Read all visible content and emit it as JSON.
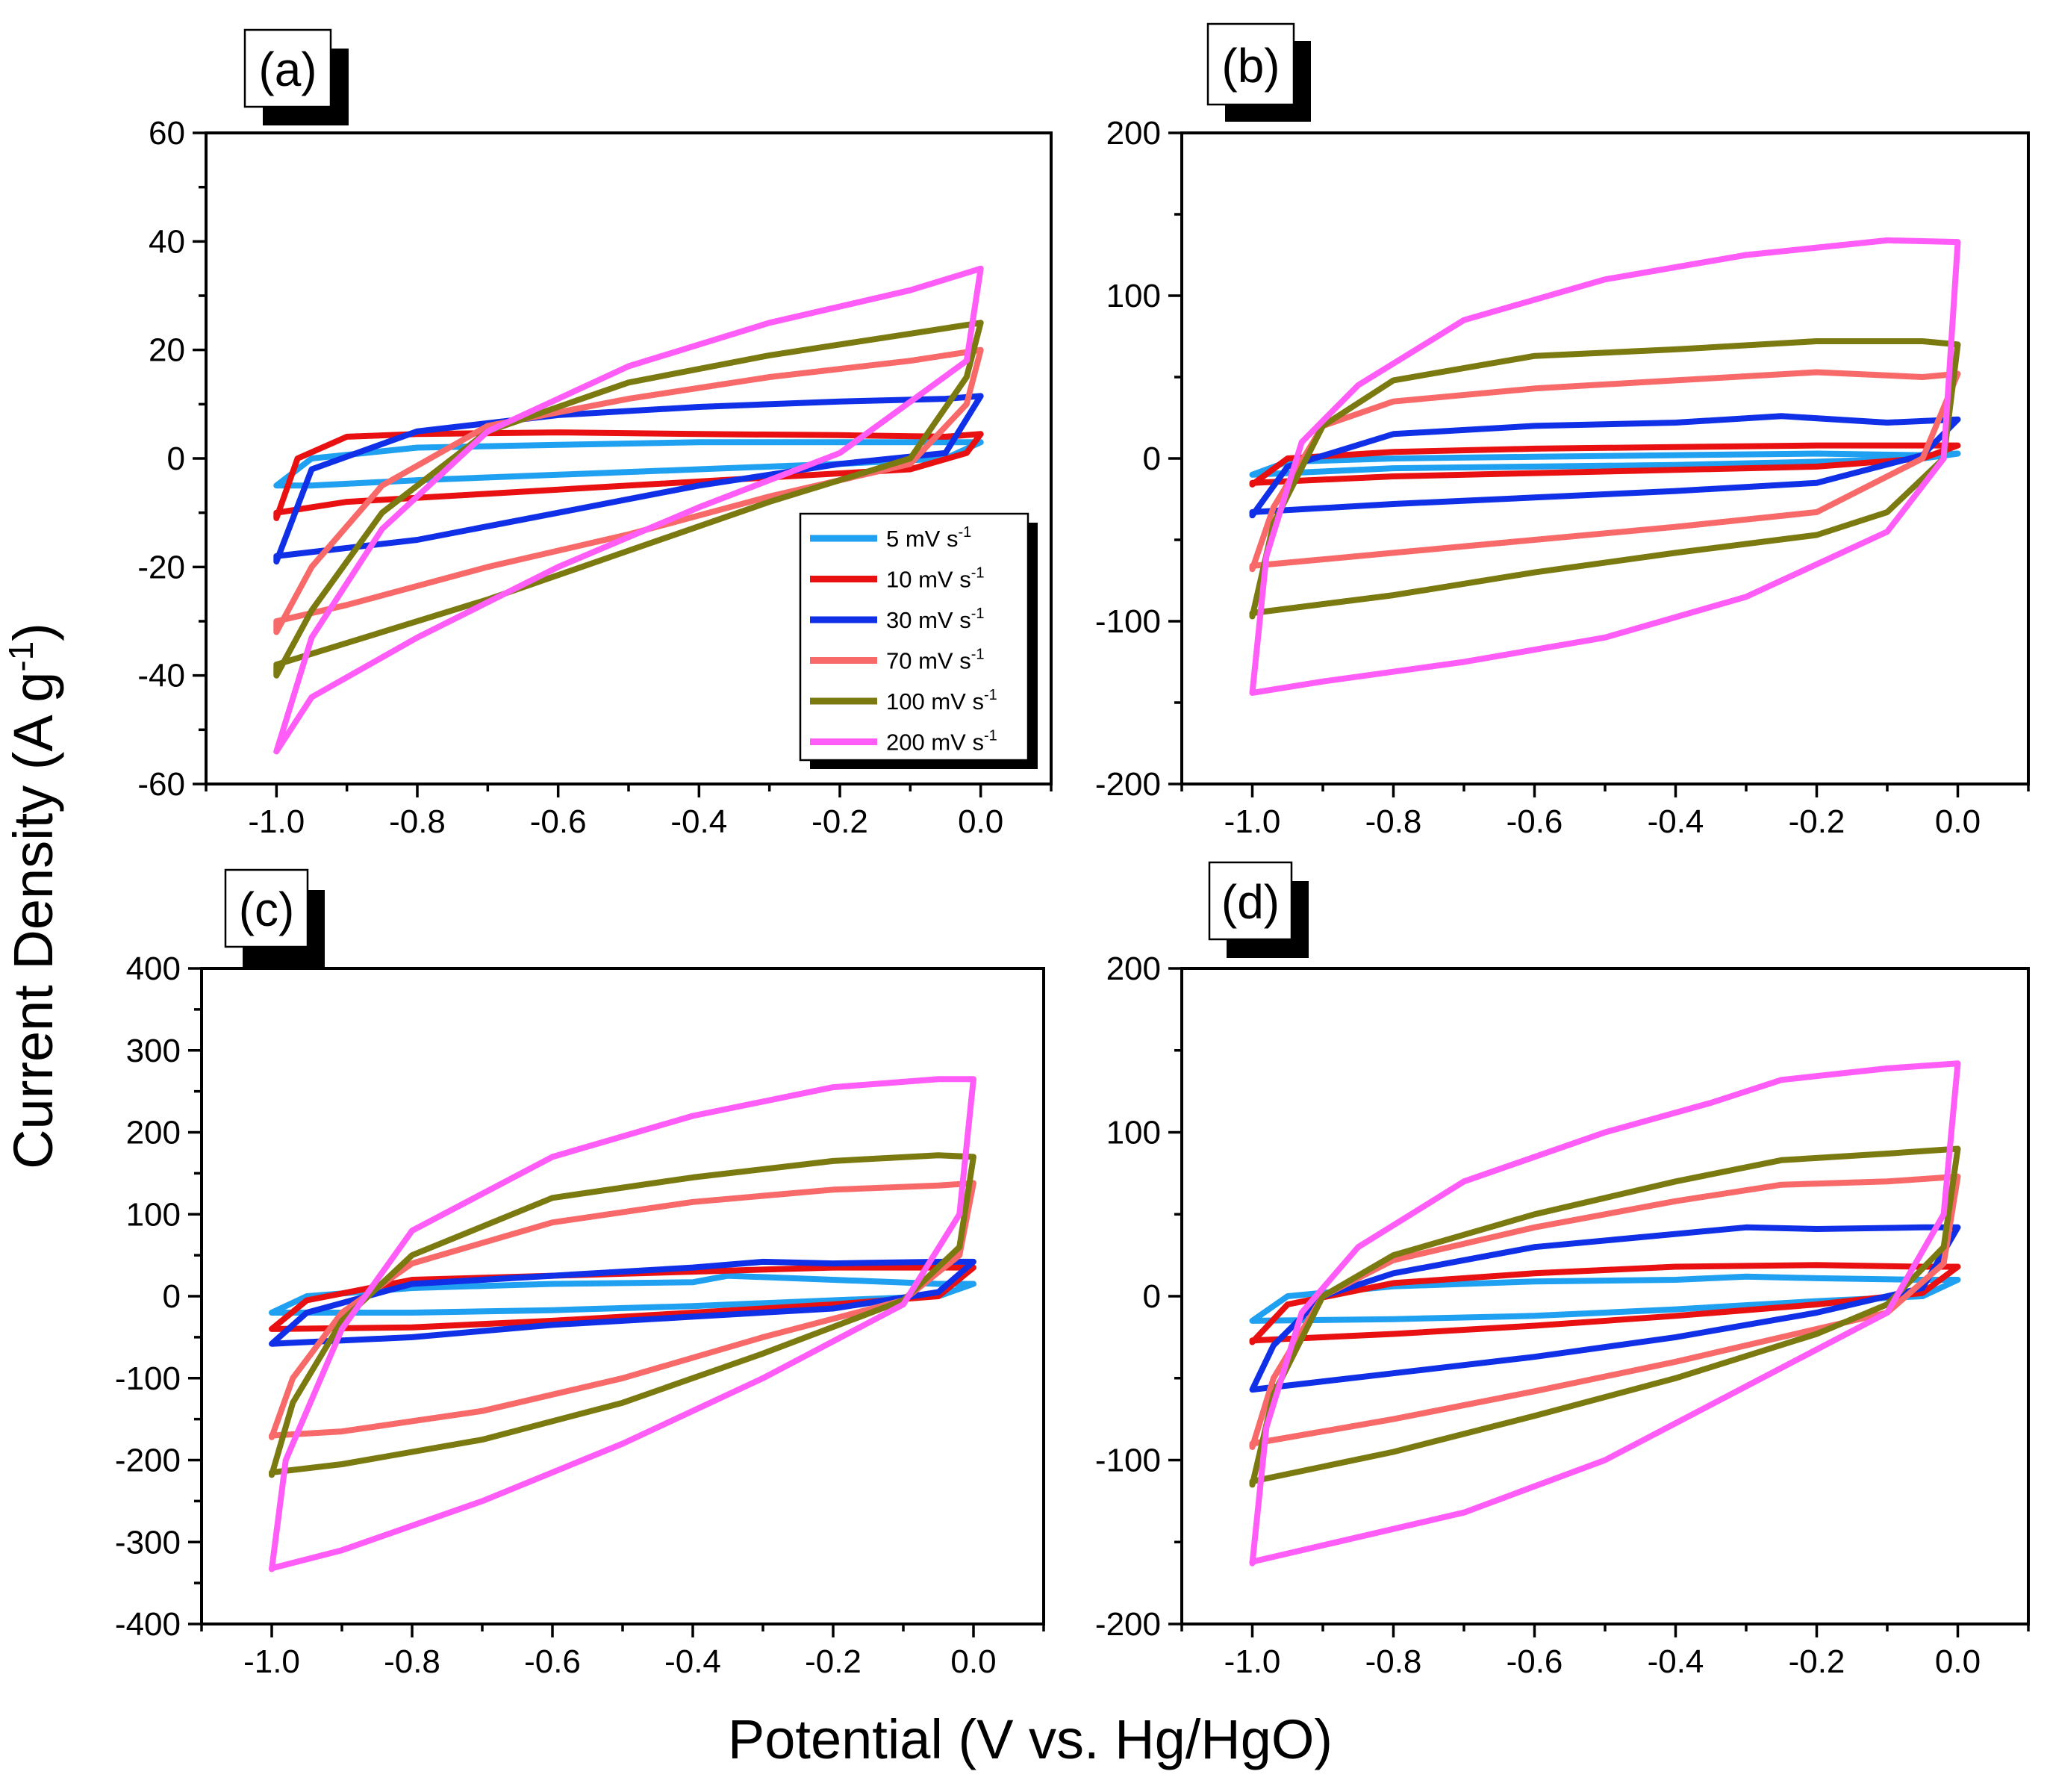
{
  "figure": {
    "x_axis_title": "Potential (V vs. Hg/HgO)",
    "y_axis_title": "Current Density (A g",
    "y_axis_title_sup": "-1",
    "y_axis_title_end": ")"
  },
  "legend": {
    "unit_base": "mV s",
    "unit_sup": "-1",
    "entries": [
      {
        "rate": "5",
        "color": "#1fa0f0"
      },
      {
        "rate": "10",
        "color": "#e81010"
      },
      {
        "rate": "30",
        "color": "#1030e8"
      },
      {
        "rate": "70",
        "color": "#f86a6a"
      },
      {
        "rate": "100",
        "color": "#7a7a10"
      },
      {
        "rate": "200",
        "color": "#ff5cf8"
      }
    ]
  },
  "chart_data": [
    {
      "type": "line",
      "panel_label": "(a)",
      "xlabel": "Potential (V vs. Hg/HgO)",
      "ylabel": "Current Density (A g-1)",
      "xlim": [
        -1.1,
        0.1
      ],
      "ylim": [
        -60,
        60
      ],
      "xticks": [
        -1.0,
        -0.8,
        -0.6,
        -0.4,
        -0.2,
        0.0
      ],
      "xtick_labels": [
        "-1.0",
        "-0.8",
        "-0.6",
        "-0.4",
        "-0.2",
        "0.0"
      ],
      "yticks": [
        -60,
        -40,
        -20,
        0,
        20,
        40,
        60
      ],
      "ytick_labels": [
        "-60",
        "-40",
        "-20",
        "0",
        "20",
        "40",
        "60"
      ],
      "series": [
        {
          "name": "5 mV s-1",
          "color": "#1fa0f0",
          "x": [
            -1.0,
            -0.95,
            -0.8,
            -0.6,
            -0.4,
            -0.2,
            -0.05,
            0.0,
            -0.05,
            -0.2,
            -0.4,
            -0.6,
            -0.8,
            -0.95,
            -1.0
          ],
          "y": [
            -5,
            0,
            2,
            2.5,
            3,
            3,
            3,
            3,
            0,
            -1,
            -2,
            -3,
            -4,
            -5,
            -5
          ]
        },
        {
          "name": "10 mV s-1",
          "color": "#e81010",
          "x": [
            -1.0,
            -0.97,
            -0.9,
            -0.8,
            -0.6,
            -0.4,
            -0.2,
            -0.05,
            0.0,
            -0.02,
            -0.1,
            -0.3,
            -0.5,
            -0.7,
            -0.9,
            -1.0
          ],
          "y": [
            -11,
            0,
            4,
            4.5,
            4.8,
            4.5,
            4.3,
            4,
            4.5,
            1,
            -2,
            -3.5,
            -5,
            -6.5,
            -8,
            -10
          ]
        },
        {
          "name": "30 mV s-1",
          "color": "#1030e8",
          "x": [
            -1.0,
            -0.95,
            -0.8,
            -0.6,
            -0.4,
            -0.2,
            -0.05,
            0.0,
            -0.05,
            -0.2,
            -0.4,
            -0.6,
            -0.8,
            -1.0
          ],
          "y": [
            -19,
            -2,
            5,
            8,
            9.5,
            10.5,
            11,
            11.5,
            1,
            -1,
            -5,
            -10,
            -15,
            -18
          ]
        },
        {
          "name": "70 mV s-1",
          "color": "#f86a6a",
          "x": [
            -1.0,
            -0.95,
            -0.85,
            -0.7,
            -0.5,
            -0.3,
            -0.1,
            0.0,
            -0.02,
            -0.1,
            -0.3,
            -0.5,
            -0.7,
            -0.9,
            -1.0
          ],
          "y": [
            -32,
            -20,
            -5,
            6,
            11,
            15,
            18,
            20,
            10,
            -1,
            -7,
            -14,
            -20,
            -27,
            -30
          ]
        },
        {
          "name": "100 mV s-1",
          "color": "#7a7a10",
          "x": [
            -1.0,
            -0.95,
            -0.85,
            -0.7,
            -0.5,
            -0.3,
            -0.1,
            0.0,
            -0.02,
            -0.1,
            -0.3,
            -0.5,
            -0.7,
            -0.9,
            -1.0
          ],
          "y": [
            -40,
            -28,
            -10,
            5,
            14,
            19,
            23,
            25,
            15,
            0,
            -8,
            -17,
            -26,
            -34,
            -38
          ]
        },
        {
          "name": "200 mV s-1",
          "color": "#ff5cf8",
          "x": [
            -1.0,
            -0.95,
            -0.85,
            -0.7,
            -0.5,
            -0.3,
            -0.1,
            0.0,
            -0.02,
            -0.2,
            -0.4,
            -0.6,
            -0.8,
            -0.95,
            -1.0
          ],
          "y": [
            -54,
            -33,
            -13,
            5,
            17,
            25,
            31,
            35,
            18,
            1,
            -9,
            -20,
            -33,
            -44,
            -54
          ]
        }
      ]
    },
    {
      "type": "line",
      "panel_label": "(b)",
      "xlabel": "Potential (V vs. Hg/HgO)",
      "ylabel": "Current Density (A g-1)",
      "xlim": [
        -1.1,
        0.1
      ],
      "ylim": [
        -200,
        200
      ],
      "xticks": [
        -1.0,
        -0.8,
        -0.6,
        -0.4,
        -0.2,
        0.0
      ],
      "xtick_labels": [
        "-1.0",
        "-0.8",
        "-0.6",
        "-0.4",
        "-0.2",
        "0.0"
      ],
      "yticks": [
        -200,
        -100,
        0,
        100,
        200
      ],
      "ytick_labels": [
        "-200",
        "-100",
        "0",
        "100",
        "200"
      ],
      "series": [
        {
          "name": "5 mV s-1",
          "color": "#1fa0f0",
          "x": [
            -1.0,
            -0.95,
            -0.8,
            -0.6,
            -0.4,
            -0.2,
            -0.05,
            0.0,
            -0.05,
            -0.2,
            -0.4,
            -0.6,
            -0.8,
            -1.0
          ],
          "y": [
            -10,
            -2,
            0,
            1,
            2,
            3,
            2,
            3,
            0,
            -2,
            -4,
            -5,
            -6,
            -10
          ]
        },
        {
          "name": "10 mV s-1",
          "color": "#e81010",
          "x": [
            -1.0,
            -0.95,
            -0.8,
            -0.6,
            -0.4,
            -0.2,
            -0.05,
            0.0,
            -0.05,
            -0.2,
            -0.4,
            -0.6,
            -0.8,
            -1.0
          ],
          "y": [
            -16,
            0,
            4,
            6,
            7,
            8,
            8,
            8,
            0,
            -5,
            -7,
            -9,
            -11,
            -15
          ]
        },
        {
          "name": "30 mV s-1",
          "color": "#1030e8",
          "x": [
            -1.0,
            -0.95,
            -0.8,
            -0.6,
            -0.4,
            -0.25,
            -0.1,
            0.0,
            -0.05,
            -0.2,
            -0.4,
            -0.6,
            -0.8,
            -1.0
          ],
          "y": [
            -35,
            -5,
            15,
            20,
            22,
            26,
            22,
            24,
            2,
            -15,
            -20,
            -24,
            -28,
            -33
          ]
        },
        {
          "name": "70 mV s-1",
          "color": "#f86a6a",
          "x": [
            -1.0,
            -0.97,
            -0.9,
            -0.8,
            -0.6,
            -0.4,
            -0.2,
            -0.05,
            0.0,
            -0.05,
            -0.2,
            -0.4,
            -0.6,
            -0.8,
            -1.0
          ],
          "y": [
            -68,
            -30,
            20,
            35,
            43,
            48,
            53,
            50,
            52,
            0,
            -33,
            -42,
            -50,
            -58,
            -66
          ]
        },
        {
          "name": "100 mV s-1",
          "color": "#7a7a10",
          "x": [
            -1.0,
            -0.97,
            -0.9,
            -0.8,
            -0.6,
            -0.4,
            -0.2,
            -0.05,
            0.0,
            -0.02,
            -0.1,
            -0.2,
            -0.4,
            -0.6,
            -0.8,
            -1.0
          ],
          "y": [
            -97,
            -40,
            20,
            48,
            63,
            67,
            72,
            72,
            70,
            0,
            -33,
            -47,
            -58,
            -70,
            -84,
            -95
          ]
        },
        {
          "name": "200 mV s-1",
          "color": "#ff5cf8",
          "x": [
            -1.0,
            -0.98,
            -0.93,
            -0.85,
            -0.7,
            -0.5,
            -0.3,
            -0.1,
            0.0,
            -0.02,
            -0.1,
            -0.3,
            -0.5,
            -0.7,
            -0.9,
            -1.0
          ],
          "y": [
            -144,
            -60,
            10,
            45,
            85,
            110,
            125,
            134,
            133,
            0,
            -45,
            -85,
            -110,
            -125,
            -137,
            -144
          ]
        }
      ]
    },
    {
      "type": "line",
      "panel_label": "(c)",
      "xlabel": "Potential (V vs. Hg/HgO)",
      "ylabel": "Current Density (A g-1)",
      "xlim": [
        -1.1,
        0.1
      ],
      "ylim": [
        -400,
        400
      ],
      "xticks": [
        -1.0,
        -0.8,
        -0.6,
        -0.4,
        -0.2,
        0.0
      ],
      "xtick_labels": [
        "-1.0",
        "-0.8",
        "-0.6",
        "-0.4",
        "-0.2",
        "0.0"
      ],
      "yticks": [
        -400,
        -300,
        -200,
        -100,
        0,
        100,
        200,
        300,
        400
      ],
      "ytick_labels": [
        "-400",
        "-300",
        "-200",
        "-100",
        "0",
        "100",
        "200",
        "300",
        "400"
      ],
      "series": [
        {
          "name": "5 mV s-1",
          "color": "#1fa0f0",
          "x": [
            -1.0,
            -0.95,
            -0.8,
            -0.6,
            -0.4,
            -0.35,
            -0.2,
            -0.05,
            0.0,
            -0.05,
            -0.2,
            -0.4,
            -0.6,
            -0.8,
            -1.0
          ],
          "y": [
            -20,
            0,
            10,
            15,
            17,
            25,
            20,
            15,
            15,
            0,
            -5,
            -12,
            -17,
            -20,
            -20
          ]
        },
        {
          "name": "10 mV s-1",
          "color": "#e81010",
          "x": [
            -1.0,
            -0.95,
            -0.8,
            -0.6,
            -0.4,
            -0.2,
            -0.05,
            0.0,
            -0.05,
            -0.2,
            -0.4,
            -0.6,
            -0.8,
            -1.0
          ],
          "y": [
            -40,
            -5,
            20,
            25,
            30,
            35,
            35,
            35,
            0,
            -10,
            -20,
            -30,
            -38,
            -40
          ]
        },
        {
          "name": "30 mV s-1",
          "color": "#1030e8",
          "x": [
            -1.0,
            -0.95,
            -0.8,
            -0.6,
            -0.4,
            -0.3,
            -0.2,
            -0.05,
            0.0,
            -0.05,
            -0.2,
            -0.4,
            -0.6,
            -0.8,
            -1.0
          ],
          "y": [
            -58,
            -20,
            15,
            25,
            35,
            42,
            40,
            42,
            42,
            5,
            -15,
            -25,
            -35,
            -50,
            -58
          ]
        },
        {
          "name": "70 mV s-1",
          "color": "#f86a6a",
          "x": [
            -1.0,
            -0.97,
            -0.9,
            -0.8,
            -0.6,
            -0.4,
            -0.2,
            -0.05,
            0.0,
            -0.02,
            -0.1,
            -0.3,
            -0.5,
            -0.7,
            -0.9,
            -1.0
          ],
          "y": [
            -172,
            -100,
            -20,
            40,
            90,
            115,
            130,
            135,
            138,
            50,
            -5,
            -50,
            -100,
            -140,
            -165,
            -170
          ]
        },
        {
          "name": "100 mV s-1",
          "color": "#7a7a10",
          "x": [
            -1.0,
            -0.97,
            -0.9,
            -0.8,
            -0.6,
            -0.4,
            -0.2,
            -0.05,
            0.0,
            -0.02,
            -0.1,
            -0.3,
            -0.5,
            -0.7,
            -0.9,
            -1.0
          ],
          "y": [
            -218,
            -130,
            -30,
            50,
            120,
            145,
            165,
            172,
            170,
            60,
            -5,
            -70,
            -130,
            -175,
            -205,
            -215
          ]
        },
        {
          "name": "200 mV s-1",
          "color": "#ff5cf8",
          "x": [
            -1.0,
            -0.98,
            -0.9,
            -0.8,
            -0.6,
            -0.4,
            -0.2,
            -0.05,
            0.0,
            -0.02,
            -0.1,
            -0.3,
            -0.5,
            -0.7,
            -0.9,
            -1.0
          ],
          "y": [
            -333,
            -200,
            -40,
            80,
            170,
            220,
            255,
            265,
            265,
            100,
            -10,
            -100,
            -180,
            -250,
            -310,
            -332
          ]
        }
      ]
    },
    {
      "type": "line",
      "panel_label": "(d)",
      "xlabel": "Potential (V vs. Hg/HgO)",
      "ylabel": "Current Density (A g-1)",
      "xlim": [
        -1.1,
        0.1
      ],
      "ylim": [
        -200,
        200
      ],
      "xticks": [
        -1.0,
        -0.8,
        -0.6,
        -0.4,
        -0.2,
        0.0
      ],
      "xtick_labels": [
        "-1.0",
        "-0.8",
        "-0.6",
        "-0.4",
        "-0.2",
        "0.0"
      ],
      "yticks": [
        -200,
        -100,
        0,
        100,
        200
      ],
      "ytick_labels": [
        "-200",
        "-100",
        "0",
        "100",
        "200"
      ],
      "series": [
        {
          "name": "5 mV s-1",
          "color": "#1fa0f0",
          "x": [
            -1.0,
            -0.95,
            -0.8,
            -0.6,
            -0.4,
            -0.3,
            -0.2,
            -0.05,
            0.0,
            -0.05,
            -0.2,
            -0.4,
            -0.6,
            -0.8,
            -1.0
          ],
          "y": [
            -15,
            0,
            6,
            9,
            10,
            12,
            11,
            10,
            10,
            0,
            -3,
            -8,
            -12,
            -14,
            -15
          ]
        },
        {
          "name": "10 mV s-1",
          "color": "#e81010",
          "x": [
            -1.0,
            -0.95,
            -0.8,
            -0.6,
            -0.4,
            -0.2,
            -0.05,
            0.0,
            -0.05,
            -0.2,
            -0.4,
            -0.6,
            -0.8,
            -1.0
          ],
          "y": [
            -28,
            -5,
            8,
            14,
            18,
            19,
            18,
            18,
            2,
            -5,
            -12,
            -18,
            -23,
            -27
          ]
        },
        {
          "name": "30 mV s-1",
          "color": "#1030e8",
          "x": [
            -1.0,
            -0.97,
            -0.9,
            -0.8,
            -0.6,
            -0.4,
            -0.3,
            -0.2,
            -0.05,
            0.0,
            -0.05,
            -0.2,
            -0.4,
            -0.6,
            -0.8,
            -1.0
          ],
          "y": [
            -57,
            -30,
            0,
            14,
            30,
            38,
            42,
            41,
            42,
            42,
            5,
            -10,
            -25,
            -37,
            -47,
            -57
          ]
        },
        {
          "name": "70 mV s-1",
          "color": "#f86a6a",
          "x": [
            -1.0,
            -0.97,
            -0.9,
            -0.8,
            -0.6,
            -0.4,
            -0.25,
            -0.1,
            0.0,
            -0.02,
            -0.1,
            -0.2,
            -0.4,
            -0.6,
            -0.8,
            -1.0
          ],
          "y": [
            -92,
            -50,
            0,
            22,
            42,
            58,
            68,
            70,
            73,
            20,
            -10,
            -20,
            -40,
            -58,
            -75,
            -90
          ]
        },
        {
          "name": "100 mV s-1",
          "color": "#7a7a10",
          "x": [
            -1.0,
            -0.97,
            -0.9,
            -0.8,
            -0.6,
            -0.4,
            -0.25,
            -0.1,
            0.0,
            -0.02,
            -0.1,
            -0.2,
            -0.4,
            -0.6,
            -0.8,
            -1.0
          ],
          "y": [
            -115,
            -60,
            0,
            25,
            50,
            70,
            83,
            87,
            90,
            30,
            -5,
            -23,
            -50,
            -73,
            -95,
            -113
          ]
        },
        {
          "name": "200 mV s-1",
          "color": "#ff5cf8",
          "x": [
            -1.0,
            -0.98,
            -0.93,
            -0.85,
            -0.7,
            -0.5,
            -0.35,
            -0.25,
            -0.1,
            0.0,
            -0.02,
            -0.1,
            -0.3,
            -0.5,
            -0.7,
            -0.9,
            -1.0
          ],
          "y": [
            -163,
            -80,
            -10,
            30,
            70,
            100,
            118,
            132,
            139,
            142,
            50,
            -10,
            -55,
            -100,
            -132,
            -152,
            -162
          ]
        }
      ]
    }
  ]
}
